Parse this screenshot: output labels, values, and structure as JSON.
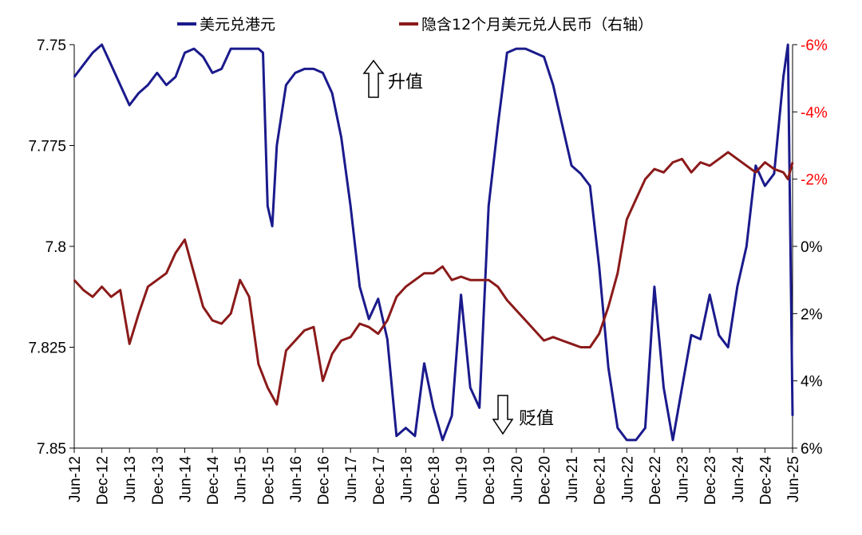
{
  "chart_data": {
    "type": "line",
    "legend": {
      "placement": "top",
      "hkd_label": "美元兑港元",
      "cnh_label": "隐含12个月美元兑人民币（右轴）"
    },
    "colors": {
      "hkd": "#1a1a8c",
      "cnh": "#8b1a1a",
      "right_axis": "#ff0000"
    },
    "left_axis": {
      "ylim": [
        7.75,
        7.85
      ],
      "inverted": true,
      "ticks": [
        "7.75",
        "7.775",
        "7.8",
        "7.825",
        "7.85"
      ]
    },
    "right_axis": {
      "ylim": [
        -6,
        6
      ],
      "inverted": true,
      "ticks": [
        "-6%",
        "-4%",
        "-2%",
        "0%",
        "2%",
        "4%",
        "6%"
      ]
    },
    "x_ticks": [
      "Jun-12",
      "Dec-12",
      "Jun-13",
      "Dec-13",
      "Jun-14",
      "Dec-14",
      "Jun-15",
      "Dec-15",
      "Jun-16",
      "Dec-16",
      "Jun-17",
      "Dec-17",
      "Jun-18",
      "Dec-18",
      "Jun-19",
      "Dec-19",
      "Jun-20",
      "Dec-20",
      "Jun-21",
      "Dec-21",
      "Jun-22",
      "Dec-22",
      "Jun-23",
      "Dec-23",
      "Jun-24",
      "Dec-24",
      "Jun-25"
    ],
    "annotations": {
      "up": "升值",
      "down": "贬值"
    },
    "series": [
      {
        "name": "美元兑港元",
        "axis": "left",
        "points": [
          [
            "Jun-12",
            7.758
          ],
          [
            "Aug-12",
            7.755
          ],
          [
            "Oct-12",
            7.752
          ],
          [
            "Dec-12",
            7.75
          ],
          [
            "Feb-13",
            7.755
          ],
          [
            "Apr-13",
            7.76
          ],
          [
            "Jun-13",
            7.765
          ],
          [
            "Aug-13",
            7.762
          ],
          [
            "Oct-13",
            7.76
          ],
          [
            "Dec-13",
            7.757
          ],
          [
            "Feb-14",
            7.76
          ],
          [
            "Apr-14",
            7.758
          ],
          [
            "Jun-14",
            7.752
          ],
          [
            "Aug-14",
            7.751
          ],
          [
            "Oct-14",
            7.753
          ],
          [
            "Dec-14",
            7.757
          ],
          [
            "Feb-15",
            7.756
          ],
          [
            "Apr-15",
            7.751
          ],
          [
            "Jun-15",
            7.751
          ],
          [
            "Aug-15",
            7.751
          ],
          [
            "Oct-15",
            7.751
          ],
          [
            "Nov-15",
            7.752
          ],
          [
            "Dec-15",
            7.79
          ],
          [
            "Jan-16",
            7.795
          ],
          [
            "Feb-16",
            7.775
          ],
          [
            "Apr-16",
            7.76
          ],
          [
            "Jun-16",
            7.757
          ],
          [
            "Aug-16",
            7.756
          ],
          [
            "Oct-16",
            7.756
          ],
          [
            "Dec-16",
            7.757
          ],
          [
            "Feb-17",
            7.762
          ],
          [
            "Apr-17",
            7.773
          ],
          [
            "Jun-17",
            7.79
          ],
          [
            "Aug-17",
            7.81
          ],
          [
            "Oct-17",
            7.818
          ],
          [
            "Dec-17",
            7.813
          ],
          [
            "Feb-18",
            7.823
          ],
          [
            "Apr-18",
            7.847
          ],
          [
            "Jun-18",
            7.845
          ],
          [
            "Aug-18",
            7.847
          ],
          [
            "Oct-18",
            7.829
          ],
          [
            "Dec-18",
            7.84
          ],
          [
            "Feb-19",
            7.848
          ],
          [
            "Apr-19",
            7.842
          ],
          [
            "Jun-19",
            7.812
          ],
          [
            "Aug-19",
            7.835
          ],
          [
            "Oct-19",
            7.84
          ],
          [
            "Dec-19",
            7.79
          ],
          [
            "Feb-20",
            7.77
          ],
          [
            "Apr-20",
            7.752
          ],
          [
            "Jun-20",
            7.751
          ],
          [
            "Aug-20",
            7.751
          ],
          [
            "Oct-20",
            7.752
          ],
          [
            "Dec-20",
            7.753
          ],
          [
            "Feb-21",
            7.76
          ],
          [
            "Apr-21",
            7.77
          ],
          [
            "Jun-21",
            7.78
          ],
          [
            "Aug-21",
            7.782
          ],
          [
            "Oct-21",
            7.785
          ],
          [
            "Dec-21",
            7.805
          ],
          [
            "Feb-22",
            7.83
          ],
          [
            "Apr-22",
            7.845
          ],
          [
            "Jun-22",
            7.848
          ],
          [
            "Aug-22",
            7.848
          ],
          [
            "Oct-22",
            7.845
          ],
          [
            "Dec-22",
            7.81
          ],
          [
            "Feb-23",
            7.835
          ],
          [
            "Apr-23",
            7.848
          ],
          [
            "Jun-23",
            7.835
          ],
          [
            "Aug-23",
            7.822
          ],
          [
            "Oct-23",
            7.823
          ],
          [
            "Dec-23",
            7.812
          ],
          [
            "Feb-24",
            7.822
          ],
          [
            "Apr-24",
            7.825
          ],
          [
            "Jun-24",
            7.81
          ],
          [
            "Aug-24",
            7.8
          ],
          [
            "Oct-24",
            7.78
          ],
          [
            "Dec-24",
            7.785
          ],
          [
            "Feb-25",
            7.782
          ],
          [
            "Apr-25",
            7.758
          ],
          [
            "May-25",
            7.75
          ],
          [
            "Jun-25",
            7.842
          ]
        ]
      },
      {
        "name": "隐含12个月美元兑人民币（右轴）",
        "axis": "right",
        "points": [
          [
            "Jun-12",
            1.0
          ],
          [
            "Aug-12",
            1.3
          ],
          [
            "Oct-12",
            1.5
          ],
          [
            "Dec-12",
            1.2
          ],
          [
            "Feb-13",
            1.5
          ],
          [
            "Apr-13",
            1.3
          ],
          [
            "Jun-13",
            2.9
          ],
          [
            "Aug-13",
            2.0
          ],
          [
            "Oct-13",
            1.2
          ],
          [
            "Dec-13",
            1.0
          ],
          [
            "Feb-14",
            0.8
          ],
          [
            "Apr-14",
            0.2
          ],
          [
            "Jun-14",
            -0.2
          ],
          [
            "Aug-14",
            0.8
          ],
          [
            "Oct-14",
            1.8
          ],
          [
            "Dec-14",
            2.2
          ],
          [
            "Feb-15",
            2.3
          ],
          [
            "Apr-15",
            2.0
          ],
          [
            "Jun-15",
            1.0
          ],
          [
            "Aug-15",
            1.5
          ],
          [
            "Oct-15",
            3.5
          ],
          [
            "Dec-15",
            4.2
          ],
          [
            "Feb-16",
            4.7
          ],
          [
            "Apr-16",
            3.1
          ],
          [
            "Jun-16",
            2.8
          ],
          [
            "Aug-16",
            2.5
          ],
          [
            "Oct-16",
            2.4
          ],
          [
            "Dec-16",
            4.0
          ],
          [
            "Feb-17",
            3.2
          ],
          [
            "Apr-17",
            2.8
          ],
          [
            "Jun-17",
            2.7
          ],
          [
            "Aug-17",
            2.3
          ],
          [
            "Oct-17",
            2.4
          ],
          [
            "Dec-17",
            2.6
          ],
          [
            "Feb-18",
            2.2
          ],
          [
            "Apr-18",
            1.5
          ],
          [
            "Jun-18",
            1.2
          ],
          [
            "Aug-18",
            1.0
          ],
          [
            "Oct-18",
            0.8
          ],
          [
            "Dec-18",
            0.8
          ],
          [
            "Feb-19",
            0.6
          ],
          [
            "Apr-19",
            1.0
          ],
          [
            "Jun-19",
            0.9
          ],
          [
            "Aug-19",
            1.0
          ],
          [
            "Oct-19",
            1.0
          ],
          [
            "Dec-19",
            1.0
          ],
          [
            "Feb-20",
            1.2
          ],
          [
            "Apr-20",
            1.6
          ],
          [
            "Jun-20",
            1.9
          ],
          [
            "Aug-20",
            2.2
          ],
          [
            "Oct-20",
            2.5
          ],
          [
            "Dec-20",
            2.8
          ],
          [
            "Feb-21",
            2.7
          ],
          [
            "Apr-21",
            2.8
          ],
          [
            "Jun-21",
            2.9
          ],
          [
            "Aug-21",
            3.0
          ],
          [
            "Oct-21",
            3.0
          ],
          [
            "Dec-21",
            2.6
          ],
          [
            "Feb-22",
            1.8
          ],
          [
            "Apr-22",
            0.8
          ],
          [
            "Jun-22",
            -0.8
          ],
          [
            "Aug-22",
            -1.4
          ],
          [
            "Oct-22",
            -2.0
          ],
          [
            "Dec-22",
            -2.3
          ],
          [
            "Feb-23",
            -2.2
          ],
          [
            "Apr-23",
            -2.5
          ],
          [
            "Jun-23",
            -2.6
          ],
          [
            "Aug-23",
            -2.2
          ],
          [
            "Oct-23",
            -2.5
          ],
          [
            "Dec-23",
            -2.4
          ],
          [
            "Feb-24",
            -2.6
          ],
          [
            "Apr-24",
            -2.8
          ],
          [
            "Jun-24",
            -2.6
          ],
          [
            "Aug-24",
            -2.4
          ],
          [
            "Oct-24",
            -2.2
          ],
          [
            "Dec-24",
            -2.5
          ],
          [
            "Feb-25",
            -2.3
          ],
          [
            "Apr-25",
            -2.2
          ],
          [
            "May-25",
            -2.0
          ],
          [
            "Jun-25",
            -2.5
          ]
        ]
      }
    ]
  }
}
